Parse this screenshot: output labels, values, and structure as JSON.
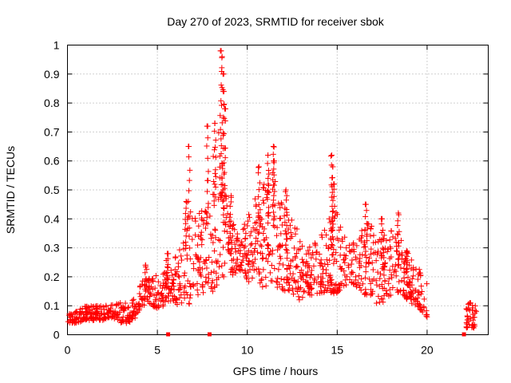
{
  "chart_data": {
    "type": "scatter",
    "title": "Day 270 of 2023, SRMTID for receiver sbok",
    "xlabel": "GPS time / hours",
    "ylabel": "SRMTID / TECUs",
    "xlim": [
      0,
      23.4
    ],
    "ylim": [
      0,
      1
    ],
    "xticks": [
      0,
      5,
      10,
      15,
      20
    ],
    "yticks": [
      0,
      0.1,
      0.2,
      0.3,
      0.4,
      0.5,
      0.6,
      0.7,
      0.8,
      0.9,
      1
    ],
    "grid": true,
    "marker": "+",
    "color": "#ff0000",
    "envelope": {
      "x": [
        0,
        0.5,
        1,
        1.5,
        2,
        2.5,
        3,
        3.4,
        3.8,
        4.2,
        4.6,
        5,
        5.4,
        5.8,
        6.2,
        6.5,
        6.9,
        7.3,
        7.7,
        8.1,
        8.5,
        8.9,
        9.3,
        9.7,
        10.1,
        10.5,
        10.9,
        11.3,
        11.7,
        12.1,
        12.5,
        12.9,
        13.3,
        13.7,
        14.1,
        14.5,
        14.9,
        15.3,
        15.7,
        16.1,
        16.5,
        16.9,
        17.3,
        17.7,
        18.1,
        18.5,
        18.9,
        19.3,
        19.7,
        20.0
      ],
      "low": [
        0.04,
        0.04,
        0.05,
        0.05,
        0.05,
        0.06,
        0.04,
        0.04,
        0.06,
        0.1,
        0.1,
        0.09,
        0.1,
        0.12,
        0.1,
        0.12,
        0.1,
        0.14,
        0.14,
        0.15,
        0.18,
        0.22,
        0.2,
        0.22,
        0.18,
        0.2,
        0.16,
        0.18,
        0.16,
        0.15,
        0.14,
        0.12,
        0.14,
        0.13,
        0.14,
        0.15,
        0.14,
        0.16,
        0.18,
        0.16,
        0.14,
        0.12,
        0.1,
        0.12,
        0.14,
        0.15,
        0.12,
        0.1,
        0.08,
        0.06
      ],
      "high": [
        0.08,
        0.09,
        0.1,
        0.1,
        0.1,
        0.11,
        0.11,
        0.11,
        0.14,
        0.2,
        0.22,
        0.2,
        0.22,
        0.25,
        0.3,
        0.38,
        0.45,
        0.45,
        0.52,
        0.62,
        0.72,
        0.45,
        0.38,
        0.36,
        0.42,
        0.48,
        0.52,
        0.58,
        0.48,
        0.45,
        0.4,
        0.35,
        0.3,
        0.32,
        0.35,
        0.4,
        0.45,
        0.34,
        0.33,
        0.34,
        0.38,
        0.4,
        0.36,
        0.34,
        0.38,
        0.33,
        0.3,
        0.25,
        0.22,
        0.18
      ]
    },
    "spikes": [
      {
        "x": 4.35,
        "y": 0.24
      },
      {
        "x": 5.55,
        "y": 0.28
      },
      {
        "x": 6.6,
        "y": 0.46
      },
      {
        "x": 6.75,
        "y": 0.65
      },
      {
        "x": 7.8,
        "y": 0.72
      },
      {
        "x": 8.2,
        "y": 0.73
      },
      {
        "x": 8.55,
        "y": 0.98
      },
      {
        "x": 8.6,
        "y": 0.96
      },
      {
        "x": 8.65,
        "y": 0.9
      },
      {
        "x": 8.7,
        "y": 0.84
      },
      {
        "x": 8.75,
        "y": 0.78
      },
      {
        "x": 9.1,
        "y": 0.48
      },
      {
        "x": 10.65,
        "y": 0.58
      },
      {
        "x": 11.15,
        "y": 0.62
      },
      {
        "x": 11.45,
        "y": 0.65
      },
      {
        "x": 11.5,
        "y": 0.6
      },
      {
        "x": 12.15,
        "y": 0.5
      },
      {
        "x": 14.7,
        "y": 0.62
      },
      {
        "x": 14.75,
        "y": 0.58
      },
      {
        "x": 14.8,
        "y": 0.52
      },
      {
        "x": 16.6,
        "y": 0.45
      },
      {
        "x": 17.5,
        "y": 0.4
      },
      {
        "x": 18.4,
        "y": 0.42
      }
    ],
    "cluster": {
      "x": [
        22.15,
        22.75
      ],
      "y": [
        0.02,
        0.11
      ]
    },
    "baseline_marks": [
      5.6,
      7.9,
      22.05
    ]
  }
}
